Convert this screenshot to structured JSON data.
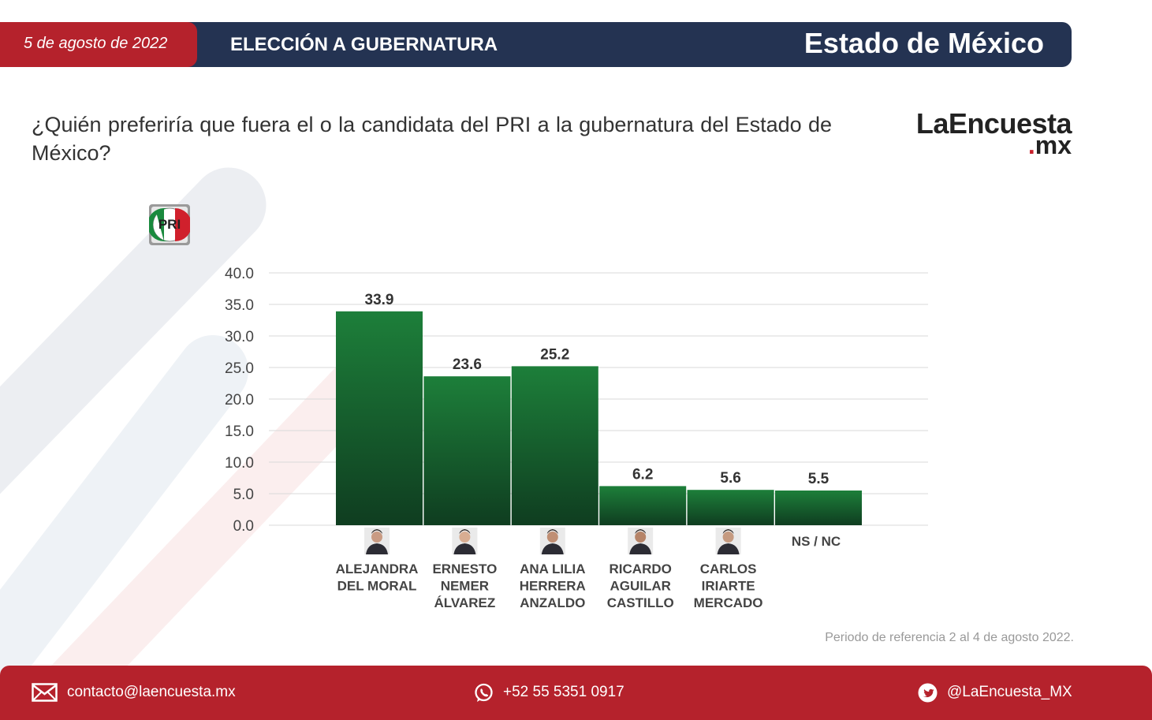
{
  "header": {
    "date": "5 de agosto de 2022",
    "section": "ELECCIÓN A GUBERNATURA",
    "state": "Estado de México"
  },
  "question": "¿Quién preferiría que fuera el o la candidata del PRI a la gubernatura del Estado de México?",
  "brand": {
    "main": "LaEncuesta",
    "sub_dot": ".",
    "sub": "mx"
  },
  "party_logo": {
    "text": "PRI",
    "colors": [
      "#1a8a3e",
      "#ffffff",
      "#d0202c"
    ]
  },
  "chart_data": {
    "type": "bar",
    "title": "",
    "xlabel": "",
    "ylabel": "",
    "ylim": [
      0,
      40
    ],
    "yticks": [
      "40.0",
      "35.0",
      "30.0",
      "25.0",
      "20.0",
      "15.0",
      "10.0",
      "5.0",
      "0.0"
    ],
    "grid": true,
    "categories": [
      [
        "ALEJANDRA",
        "DEL MORAL"
      ],
      [
        "ERNESTO",
        "NEMER",
        "ÁLVAREZ"
      ],
      [
        "ANA LILIA",
        "HERRERA",
        "ANZALDO"
      ],
      [
        "RICARDO",
        "AGUILAR",
        "CASTILLO"
      ],
      [
        "CARLOS",
        "IRIARTE",
        "MERCADO"
      ],
      [
        "NS / NC"
      ]
    ],
    "values": [
      33.9,
      23.6,
      25.2,
      6.2,
      5.6,
      5.5
    ],
    "value_labels": [
      "33.9",
      "23.6",
      "25.2",
      "6.2",
      "5.6",
      "5.5"
    ],
    "has_photo": [
      true,
      true,
      true,
      true,
      true,
      false
    ],
    "bar_color_top": "#1d7f3a",
    "bar_color_bottom": "#0f3d20"
  },
  "source_note": "Periodo de referencia 2 al 4 de agosto 2022.",
  "footer": {
    "email": "contacto@laencuesta.mx",
    "phone": "+52 55 5351 0917",
    "twitter": "@LaEncuesta_MX"
  },
  "colors": {
    "red": "#b5222c",
    "navy": "#243352"
  },
  "icons": {
    "email": "envelope-icon",
    "phone": "whatsapp-icon",
    "twitter": "twitter-bird-icon"
  }
}
